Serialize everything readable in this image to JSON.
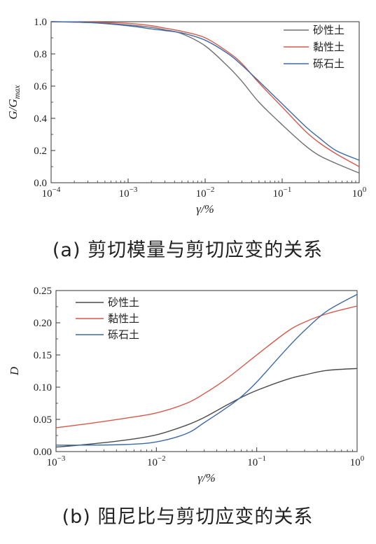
{
  "chart_data": [
    {
      "type": "line",
      "caption": "(a) 剪切模量与剪切应变的关系",
      "xlabel": "γ/%",
      "ylabel_main": "G/G",
      "ylabel_sub": "max",
      "xscale": "log",
      "xlim": [
        0.0001,
        1
      ],
      "ylim": [
        0,
        1.0
      ],
      "xtick_base": "10",
      "xticks": [
        {
          "value": 0.0001,
          "exp": "−4"
        },
        {
          "value": 0.001,
          "exp": "−3"
        },
        {
          "value": 0.01,
          "exp": "−2"
        },
        {
          "value": 0.1,
          "exp": "−1"
        },
        {
          "value": 1,
          "exp": "0"
        }
      ],
      "yticks": [
        "0.0",
        "0.2",
        "0.4",
        "0.6",
        "0.8",
        "1.0"
      ],
      "ytick_values": [
        0,
        0.2,
        0.4,
        0.6,
        0.8,
        1.0
      ],
      "grid": false,
      "legend_position": "top-right",
      "series": [
        {
          "name": "砂性土",
          "color": "#707070",
          "x": [
            0.0001,
            0.0003,
            0.001,
            0.002,
            0.003,
            0.005,
            0.01,
            0.02,
            0.03,
            0.05,
            0.1,
            0.2,
            0.3,
            0.5,
            1.0
          ],
          "y": [
            1.0,
            0.995,
            0.98,
            0.965,
            0.95,
            0.925,
            0.85,
            0.72,
            0.63,
            0.5,
            0.36,
            0.23,
            0.17,
            0.12,
            0.06
          ]
        },
        {
          "name": "黏性土",
          "color": "#d9584a",
          "x": [
            0.0001,
            0.0003,
            0.001,
            0.002,
            0.003,
            0.005,
            0.01,
            0.02,
            0.03,
            0.05,
            0.1,
            0.2,
            0.3,
            0.5,
            1.0
          ],
          "y": [
            1.0,
            0.997,
            0.99,
            0.975,
            0.96,
            0.94,
            0.9,
            0.81,
            0.74,
            0.62,
            0.47,
            0.32,
            0.25,
            0.18,
            0.1
          ]
        },
        {
          "name": "砾石土",
          "color": "#3c6aa8",
          "x": [
            0.0001,
            0.0003,
            0.001,
            0.002,
            0.003,
            0.005,
            0.01,
            0.02,
            0.03,
            0.05,
            0.1,
            0.2,
            0.3,
            0.5,
            1.0
          ],
          "y": [
            1.0,
            0.995,
            0.975,
            0.955,
            0.945,
            0.93,
            0.885,
            0.8,
            0.73,
            0.63,
            0.49,
            0.35,
            0.28,
            0.2,
            0.14
          ]
        }
      ]
    },
    {
      "type": "line",
      "caption": "(b) 阻尼比与剪切应变的关系",
      "xlabel": "γ/%",
      "ylabel_main": "D",
      "ylabel_sub": "",
      "xscale": "log",
      "xlim": [
        0.001,
        1
      ],
      "ylim": [
        0,
        0.25
      ],
      "xtick_base": "10",
      "xticks": [
        {
          "value": 0.001,
          "exp": "−3"
        },
        {
          "value": 0.01,
          "exp": "−2"
        },
        {
          "value": 0.1,
          "exp": "−1"
        },
        {
          "value": 1,
          "exp": "0"
        }
      ],
      "yticks": [
        "0.00",
        "0.05",
        "0.10",
        "0.15",
        "0.20",
        "0.25"
      ],
      "ytick_values": [
        0,
        0.05,
        0.1,
        0.15,
        0.2,
        0.25
      ],
      "grid": false,
      "legend_position": "top-left",
      "series": [
        {
          "name": "砂性土",
          "color": "#4a4a4a",
          "x": [
            0.001,
            0.002,
            0.005,
            0.01,
            0.02,
            0.03,
            0.05,
            0.07,
            0.1,
            0.2,
            0.3,
            0.5,
            1.0
          ],
          "y": [
            0.007,
            0.011,
            0.018,
            0.026,
            0.041,
            0.053,
            0.072,
            0.084,
            0.095,
            0.112,
            0.119,
            0.126,
            0.129
          ]
        },
        {
          "name": "黏性土",
          "color": "#d9584a",
          "x": [
            0.001,
            0.002,
            0.005,
            0.01,
            0.02,
            0.03,
            0.05,
            0.1,
            0.2,
            0.3,
            0.5,
            1.0
          ],
          "y": [
            0.037,
            0.043,
            0.052,
            0.06,
            0.075,
            0.09,
            0.113,
            0.15,
            0.186,
            0.201,
            0.214,
            0.226
          ]
        },
        {
          "name": "砾石土",
          "color": "#3c6aa8",
          "x": [
            0.001,
            0.002,
            0.005,
            0.01,
            0.02,
            0.03,
            0.05,
            0.07,
            0.1,
            0.2,
            0.3,
            0.5,
            1.0
          ],
          "y": [
            0.01,
            0.01,
            0.011,
            0.015,
            0.028,
            0.045,
            0.068,
            0.085,
            0.108,
            0.16,
            0.188,
            0.218,
            0.244
          ]
        }
      ]
    }
  ]
}
